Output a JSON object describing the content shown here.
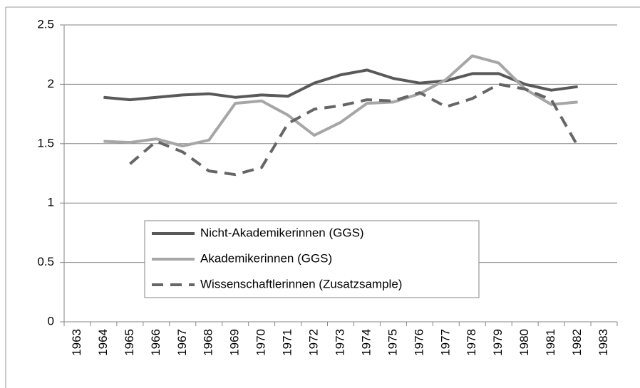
{
  "chart_data": {
    "type": "line",
    "categories": [
      "1963",
      "1964",
      "1965",
      "1966",
      "1967",
      "1968",
      "1969",
      "1970",
      "1971",
      "1972",
      "1973",
      "1974",
      "1975",
      "1976",
      "1977",
      "1978",
      "1979",
      "1980",
      "1981",
      "1982",
      "1983"
    ],
    "series": [
      {
        "name": "Nicht-Akademikerinnen (GGS)",
        "color": "#595959",
        "dashed": false,
        "values": [
          null,
          1.89,
          1.87,
          1.89,
          1.91,
          1.92,
          1.89,
          1.91,
          1.9,
          2.01,
          2.08,
          2.12,
          2.05,
          2.01,
          2.03,
          2.09,
          2.09,
          2.0,
          1.95,
          1.98,
          null
        ]
      },
      {
        "name": "Akademikerinnen (GGS)",
        "color": "#a6a6a6",
        "dashed": false,
        "values": [
          null,
          1.52,
          1.51,
          1.54,
          1.48,
          1.53,
          1.84,
          1.86,
          1.74,
          1.57,
          1.68,
          1.84,
          1.85,
          1.92,
          2.04,
          2.24,
          2.18,
          1.96,
          1.83,
          1.85,
          null
        ]
      },
      {
        "name": "Wissenschaftlerinnen (Zusatzsample)",
        "color": "#666666",
        "dashed": true,
        "values": [
          null,
          null,
          1.33,
          1.52,
          1.43,
          1.27,
          1.24,
          1.3,
          1.67,
          1.79,
          1.82,
          1.87,
          1.86,
          1.93,
          1.81,
          1.88,
          2.0,
          1.96,
          1.87,
          1.48,
          null
        ]
      }
    ],
    "ylim": [
      0,
      2.5
    ],
    "yticks": [
      0,
      0.5,
      1,
      1.5,
      2,
      2.5
    ],
    "grid": true
  }
}
